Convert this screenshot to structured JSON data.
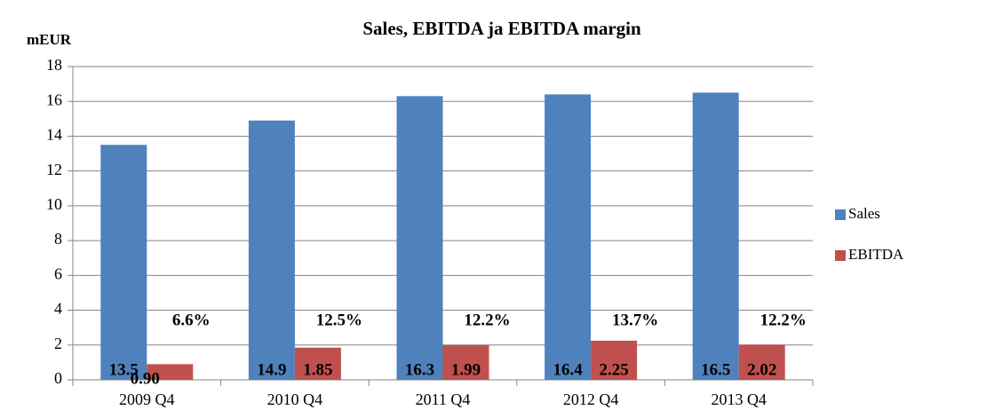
{
  "chart_data": {
    "type": "bar",
    "title": "Sales, EBITDA ja EBITDA margin",
    "y_label": "mEUR",
    "categories": [
      "2009 Q4",
      "2010 Q4",
      "2011 Q4",
      "2012 Q4",
      "2013 Q4"
    ],
    "series": [
      {
        "name": "Sales",
        "color": "#4f81bd",
        "values": [
          13.5,
          14.9,
          16.3,
          16.4,
          16.5
        ]
      },
      {
        "name": "EBITDA",
        "color": "#c0504d",
        "values": [
          0.9,
          1.85,
          1.99,
          2.25,
          2.02
        ],
        "value_labels": [
          "0.90",
          "1.85",
          "1.99",
          "2.25",
          "2.02"
        ]
      }
    ],
    "annotations": [
      "6.6%",
      "12.5%",
      "12.2%",
      "13.7%",
      "12.2%"
    ],
    "ylim": [
      0,
      18
    ],
    "yticks": [
      0,
      2,
      4,
      6,
      8,
      10,
      12,
      14,
      16,
      18
    ],
    "grid": true,
    "legend": "right"
  }
}
